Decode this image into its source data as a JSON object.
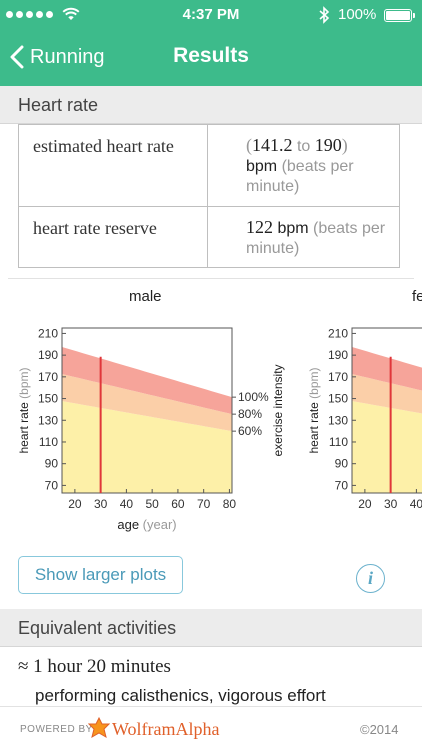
{
  "status_bar": {
    "time": "4:37 PM",
    "battery": "100%",
    "battery_level": 1.0
  },
  "nav": {
    "back_label": "Running",
    "title": "Results"
  },
  "heart_rate": {
    "section_title": "Heart rate",
    "rows": [
      {
        "label": "estimated heart rate",
        "open": "(",
        "low": "141.2",
        "to": "to",
        "high": "190",
        "close": ")",
        "unit": "bpm",
        "unit_desc": "(beats per minute)"
      },
      {
        "label": "heart rate reserve",
        "value": "122",
        "unit": "bpm",
        "unit_desc": "(beats per minute)"
      }
    ]
  },
  "plots": [
    {
      "title": "male",
      "ylabel": "heart rate",
      "ylabel_unit": "(bpm)",
      "xlabel": "age",
      "xlabel_unit": "(year)",
      "y2label": "exercise intensity",
      "y_ticks": [
        "70",
        "90",
        "110",
        "130",
        "150",
        "170",
        "190",
        "210"
      ],
      "x_ticks": [
        "20",
        "30",
        "40",
        "50",
        "60",
        "70",
        "80"
      ],
      "y2_ticks": [
        "100%",
        "80%",
        "60%"
      ],
      "marker_age": 30
    },
    {
      "title": "fe",
      "ylabel": "heart rate",
      "ylabel_unit": "(bpm)",
      "xlabel": "ag",
      "y_ticks": [
        "70",
        "90",
        "110",
        "130",
        "150",
        "170",
        "190",
        "210"
      ],
      "x_ticks": [
        "20",
        "30",
        "40"
      ],
      "marker_age": 30
    }
  ],
  "actions": {
    "larger_plots": "Show larger plots",
    "info": "i"
  },
  "equivalent": {
    "section_title": "Equivalent activities",
    "duration": "≈ 1 hour 20 minutes",
    "activity": "performing calisthenics, vigorous effort"
  },
  "footer": {
    "powered_by": "POWERED BY",
    "brand": "WolframAlpha",
    "copyright": "©2014"
  },
  "colors": {
    "header": "#3dbb8b",
    "zone_high": "#f6a49a",
    "zone_mid": "#fbcfa8",
    "zone_low": "#fdf0a8",
    "marker": "#e0363a",
    "link": "#4b9ab8"
  }
}
